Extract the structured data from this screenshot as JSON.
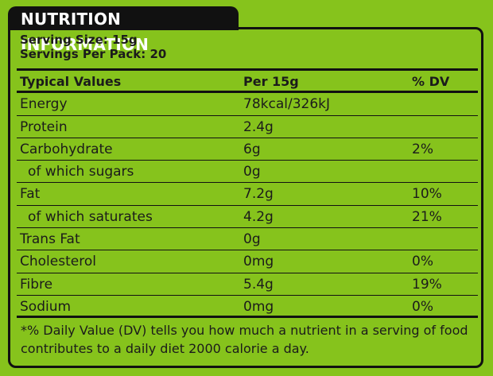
{
  "header": {
    "title": "NUTRITION INFORMATION"
  },
  "serving": {
    "size": "Serving Size: 15g",
    "per_pack": "Servings Per Pack: 20"
  },
  "table": {
    "headers": [
      "Typical Values",
      "Per 15g",
      "% DV"
    ],
    "rows": [
      {
        "name": "Energy",
        "amount": "78kcal/326kJ",
        "dv": ""
      },
      {
        "name": "Protein",
        "amount": "2.4g",
        "dv": ""
      },
      {
        "name": "Carbohydrate",
        "amount": "6g",
        "dv": "2%"
      },
      {
        "name": "of which sugars",
        "amount": "0g",
        "dv": ""
      },
      {
        "name": "Fat",
        "amount": "7.2g",
        "dv": "10%"
      },
      {
        "name": "of which saturates",
        "amount": "4.2g",
        "dv": "21%"
      },
      {
        "name": "Trans Fat",
        "amount": "0g",
        "dv": ""
      },
      {
        "name": "Cholesterol",
        "amount": "0mg",
        "dv": "0%"
      },
      {
        "name": "Fibre",
        "amount": "5.4g",
        "dv": "19%"
      },
      {
        "name": "Sodium",
        "amount": "0mg",
        "dv": "0%"
      }
    ]
  },
  "footnote": {
    "line1": "*% Daily Value (DV) tells you how much a nutrient in a serving of food",
    "line2": "contributes to a daily diet 2000 calorie a day."
  },
  "colors": {
    "background": "#86c31c",
    "ink": "#111111"
  }
}
